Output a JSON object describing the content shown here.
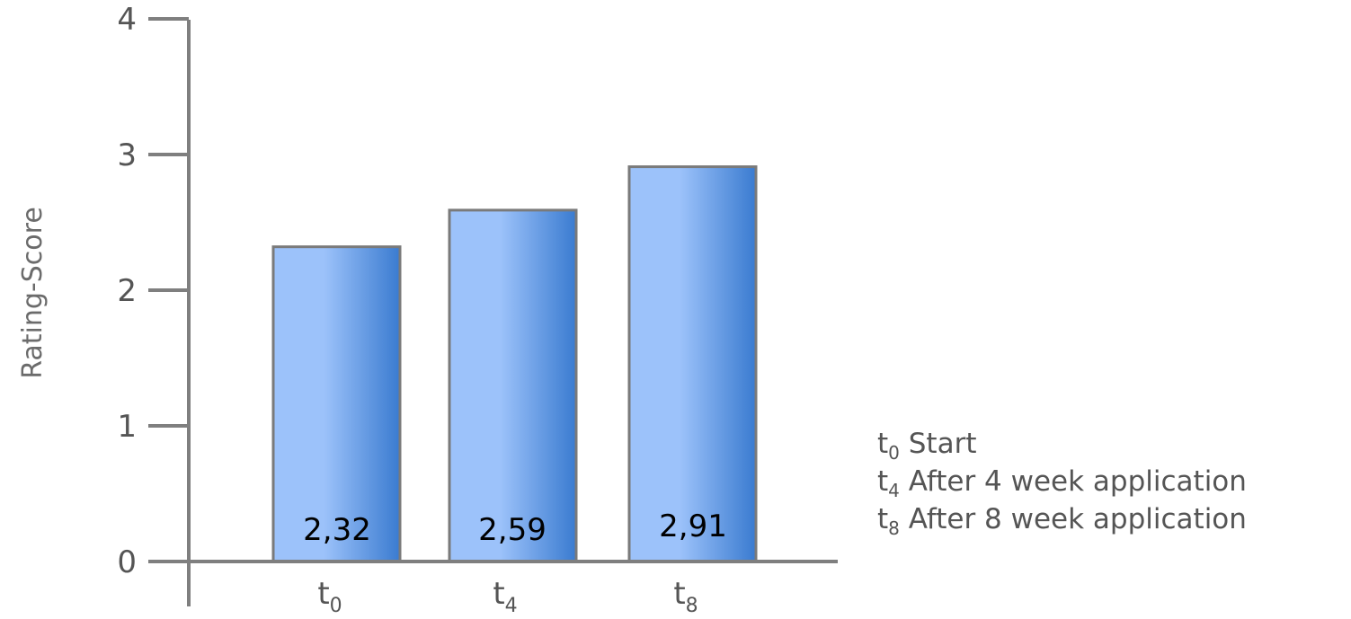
{
  "chart_data": {
    "type": "bar",
    "title": "",
    "xlabel": "",
    "ylabel": "Rating-Score",
    "ylim": [
      0,
      4
    ],
    "yticks": [
      "0",
      "1",
      "2",
      "3",
      "4"
    ],
    "categories": [
      {
        "base": "t",
        "sub": "0"
      },
      {
        "base": "t",
        "sub": "4"
      },
      {
        "base": "t",
        "sub": "8"
      }
    ],
    "values": [
      2.32,
      2.59,
      2.91
    ],
    "value_labels": [
      "2,32",
      "2,59",
      "2,91"
    ],
    "legend": [
      {
        "base": "t",
        "sub": "0",
        "text": " Start"
      },
      {
        "base": "t",
        "sub": "4",
        "text": " After 4 week application"
      },
      {
        "base": "t",
        "sub": "8",
        "text": " After 8 week application"
      }
    ],
    "legend_position": "bottom-right",
    "grid": false,
    "colors": {
      "bar_light": "#9cc2fa",
      "bar_dark": "#3a7bd0",
      "bar_border": "#7a7a7a",
      "axis": "#7f7f7f",
      "text": "#555555"
    }
  }
}
